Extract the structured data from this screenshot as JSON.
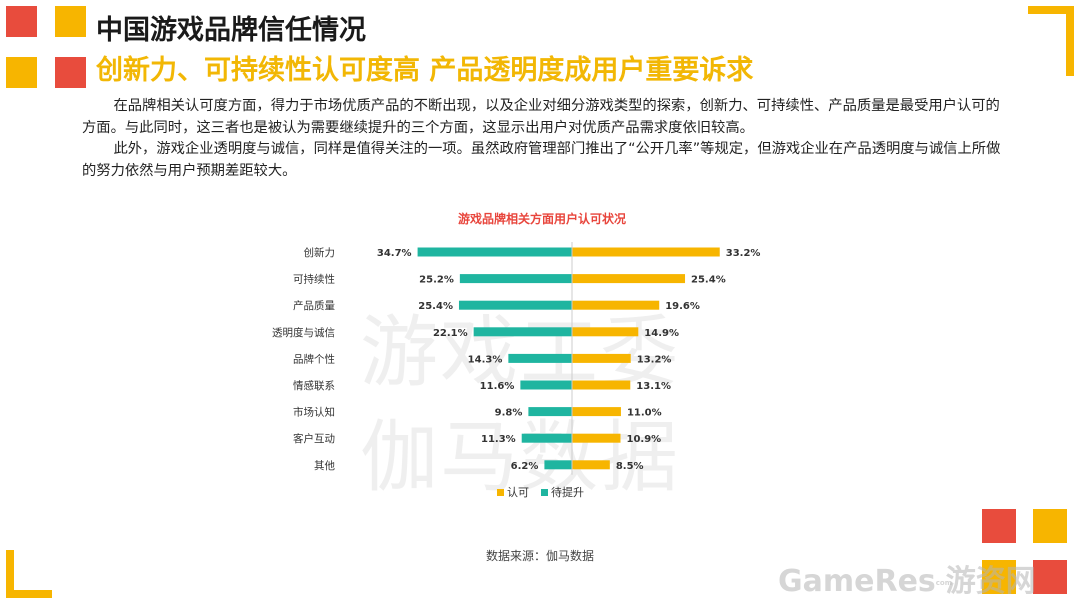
{
  "header": {
    "title": "中国游戏品牌信任情况",
    "subtitle": "创新力、可持续性认可度高 产品透明度成用户重要诉求"
  },
  "body": {
    "paragraph1": "在品牌相关认可度方面，得力于市场优质产品的不断出现，以及企业对细分游戏类型的探索，创新力、可持续性、产品质量是最受用户认可的方面。与此同时，这三者也是被认为需要继续提升的三个方面，这显示出用户对优质产品需求度依旧较高。",
    "paragraph2": "此外，游戏企业透明度与诚信，同样是值得关注的一项。虽然政府管理部门推出了“公开几率”等规定，但游戏企业在产品透明度与诚信上所做的努力依然与用户预期差距较大。"
  },
  "watermark": {
    "line1": "游戏工委",
    "line2": "伽马数据"
  },
  "source": "数据来源：伽马数据",
  "logo": {
    "text": "GameRes游资网",
    "small": "com"
  },
  "colors": {
    "red": "#e84c3d",
    "yellow": "#f7b500",
    "teal": "#1fb5a0",
    "title_red": "#e8453c"
  },
  "chart_data": {
    "type": "bar",
    "title": "游戏品牌相关方面用户认可状况",
    "categories": [
      "创新力",
      "可持续性",
      "产品质量",
      "透明度与诚信",
      "品牌个性",
      "情感联系",
      "市场认知",
      "客户互动",
      "其他"
    ],
    "series": [
      {
        "name": "认可",
        "values": [
          33.2,
          25.4,
          19.6,
          14.9,
          13.2,
          13.1,
          11.0,
          10.9,
          8.5
        ],
        "labels": [
          "33.2%",
          "25.4%",
          "19.6%",
          "14.9%",
          "13.2%",
          "13.1%",
          "11.0%",
          "10.9%",
          "8.5%"
        ]
      },
      {
        "name": "待提升",
        "values": [
          34.7,
          25.2,
          25.4,
          22.1,
          14.3,
          11.6,
          9.8,
          11.3,
          6.2
        ],
        "labels": [
          "34.7%",
          "25.2%",
          "25.4%",
          "22.1%",
          "14.3%",
          "11.6%",
          "9.8%",
          "11.3%",
          "6.2%"
        ]
      }
    ],
    "legend_position": "bottom",
    "layout": "diverging-horizontal-bar"
  }
}
